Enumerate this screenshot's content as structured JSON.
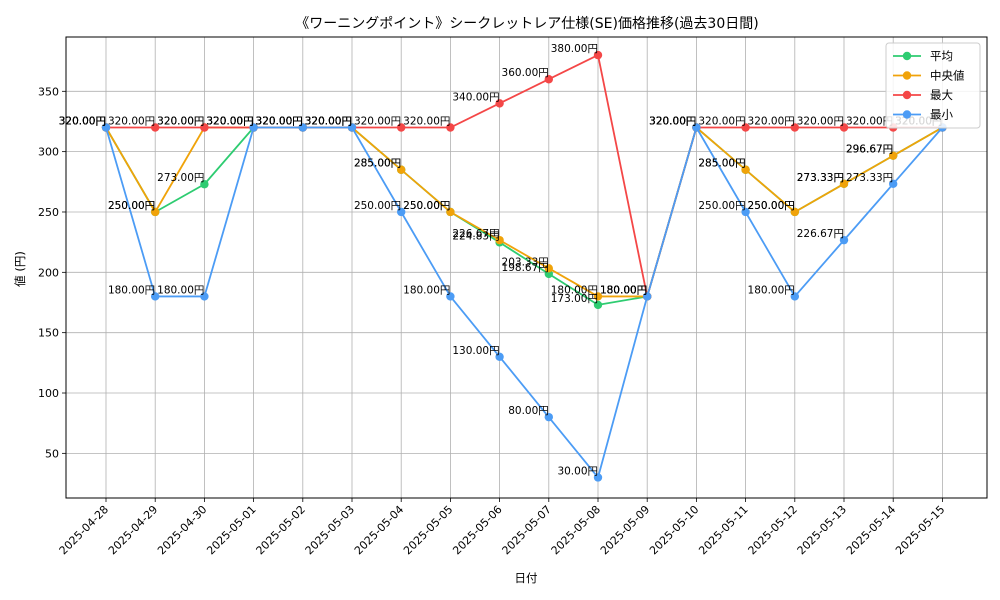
{
  "chart_data": {
    "type": "line",
    "title": "《ワーニングポイント》シークレットレア仕様(SE)価格推移(過去30日間)",
    "xlabel": "日付",
    "ylabel": "値 (円)",
    "ylim": [
      13,
      395
    ],
    "yticks": [
      50,
      100,
      150,
      200,
      250,
      300,
      350
    ],
    "grid": true,
    "legend_position": "top-right",
    "x": [
      "2025-04-28",
      "2025-04-29",
      "2025-04-30",
      "2025-05-01",
      "2025-05-02",
      "2025-05-03",
      "2025-05-04",
      "2025-05-05",
      "2025-05-06",
      "2025-05-07",
      "2025-05-08",
      "2025-05-09",
      "2025-05-10",
      "2025-05-11",
      "2025-05-12",
      "2025-05-13",
      "2025-05-14",
      "2025-05-15"
    ],
    "series": [
      {
        "name": "平均",
        "color": "#2ecc71",
        "values": [
          320,
          250,
          273,
          320,
          320,
          320,
          285,
          250,
          224.83,
          198.67,
          173,
          180,
          320,
          285,
          250,
          273.33,
          296.67,
          320
        ]
      },
      {
        "name": "中央値",
        "color": "#f0a30a",
        "values": [
          320,
          250,
          320,
          320,
          320,
          320,
          285,
          250,
          226.67,
          203.33,
          180,
          180,
          320,
          285,
          250,
          273.33,
          296.67,
          320
        ]
      },
      {
        "name": "最大",
        "color": "#f44747",
        "values": [
          320,
          320,
          320,
          320,
          320,
          320,
          320,
          320,
          340,
          360,
          380,
          180,
          320,
          320,
          320,
          320,
          320,
          320
        ]
      },
      {
        "name": "最小",
        "color": "#4c9cf5",
        "values": [
          320,
          180,
          180,
          320,
          320,
          320,
          250,
          180,
          130,
          80,
          30,
          180,
          320,
          250,
          180,
          226.67,
          273.33,
          320
        ]
      }
    ],
    "data_labels": [
      {
        "series": 0,
        "labels": [
          "320.00円",
          "250.00円",
          "273.00円",
          "320.00円",
          "320.00円",
          "320.00円",
          "285.00円",
          "250.00円",
          "224.83円",
          "198.67円",
          "173.00円",
          "180.00円",
          "320.00円",
          "285.00円",
          "250.00円",
          "273.33円",
          "296.67円",
          "320.00円"
        ]
      },
      {
        "series": 1,
        "labels": [
          "320.00円",
          "250.00円",
          "320.00円",
          "320.00円",
          "320.00円",
          "320.00円",
          "285.00円",
          "250.00円",
          "226.67円",
          "203.33円",
          "180.00円",
          "180.00円",
          "320.00円",
          "285.00円",
          "250.00円",
          "273.33円",
          "296.67円",
          "320.00円"
        ]
      },
      {
        "series": 2,
        "labels": [
          "320.00円",
          "320.00円",
          "320.00円",
          "320.00円",
          "320.00円",
          "320.00円",
          "320.00円",
          "320.00円",
          "340.00円",
          "360.00円",
          "380.00円",
          "180.00円",
          "320.00円",
          "320.00円",
          "320.00円",
          "320.00円",
          "320.00円",
          "320.00円"
        ]
      },
      {
        "series": 3,
        "labels": [
          "320.00円",
          "180.00円",
          "180.00円",
          "320.00円",
          "320.00円",
          "320.00円",
          "250.00円",
          "180.00円",
          "130.00円",
          "80.00円",
          "30.00円",
          "180.00円",
          "320.00円",
          "250.00円",
          "180.00円",
          "226.67円",
          "273.33円",
          "320.00円"
        ]
      }
    ]
  }
}
